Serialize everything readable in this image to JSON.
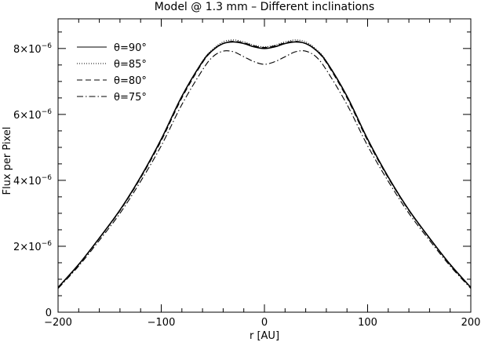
{
  "chart_data": {
    "type": "line",
    "title": "Model @ 1.3 mm – Different inclinations",
    "xlabel": "r [AU]",
    "ylabel": "Flux per Pixel",
    "xlim": [
      -200,
      200
    ],
    "ylim": [
      0,
      8.9e-06
    ],
    "xticks": [
      {
        "value": -200,
        "label": "−200"
      },
      {
        "value": -100,
        "label": "−100"
      },
      {
        "value": 0,
        "label": "0"
      },
      {
        "value": 100,
        "label": "100"
      },
      {
        "value": 200,
        "label": "200"
      }
    ],
    "yticks": [
      {
        "value": 0,
        "base": "0",
        "exp": ""
      },
      {
        "value": 2e-06,
        "base": "2×10",
        "exp": "−6"
      },
      {
        "value": 4e-06,
        "base": "4×10",
        "exp": "−6"
      },
      {
        "value": 6e-06,
        "base": "6×10",
        "exp": "−6"
      },
      {
        "value": 8e-06,
        "base": "8×10",
        "exp": "−6"
      }
    ],
    "legend_position": "top-left",
    "grid": false,
    "line_color": "#000000",
    "x": [
      -200,
      -180,
      -160,
      -140,
      -120,
      -100,
      -80,
      -60,
      -50,
      -40,
      -30,
      -20,
      -10,
      0,
      10,
      20,
      30,
      40,
      50,
      60,
      80,
      100,
      120,
      140,
      160,
      180,
      200
    ],
    "series": [
      {
        "name": "θ=90°",
        "dash": "solid",
        "values": [
          7.5e-07,
          1.45e-06,
          2.25e-06,
          3.1e-06,
          4.1e-06,
          5.25e-06,
          6.55e-06,
          7.6e-06,
          7.95e-06,
          8.15e-06,
          8.2e-06,
          8.15e-06,
          8.05e-06,
          8e-06,
          8.05e-06,
          8.15e-06,
          8.2e-06,
          8.15e-06,
          7.95e-06,
          7.6e-06,
          6.55e-06,
          5.25e-06,
          4.1e-06,
          3.1e-06,
          2.25e-06,
          1.45e-06,
          7.5e-07
        ]
      },
      {
        "name": "θ=85°",
        "dash": "dotted",
        "values": [
          7.5e-07,
          1.45e-06,
          2.25e-06,
          3.1e-06,
          4.1e-06,
          5.25e-06,
          6.55e-06,
          7.62e-06,
          7.98e-06,
          8.2e-06,
          8.26e-06,
          8.2e-06,
          8.1e-06,
          8.05e-06,
          8.1e-06,
          8.2e-06,
          8.26e-06,
          8.2e-06,
          7.98e-06,
          7.62e-06,
          6.55e-06,
          5.25e-06,
          4.1e-06,
          3.1e-06,
          2.25e-06,
          1.45e-06,
          7.5e-07
        ]
      },
      {
        "name": "θ=80°",
        "dash": "dashed",
        "values": [
          7.5e-07,
          1.44e-06,
          2.24e-06,
          3.08e-06,
          4.07e-06,
          5.2e-06,
          6.5e-06,
          7.57e-06,
          7.94e-06,
          8.15e-06,
          8.22e-06,
          8.17e-06,
          8.08e-06,
          8.03e-06,
          8.08e-06,
          8.17e-06,
          8.22e-06,
          8.15e-06,
          7.94e-06,
          7.57e-06,
          6.5e-06,
          5.2e-06,
          4.07e-06,
          3.08e-06,
          2.24e-06,
          1.44e-06,
          7.5e-07
        ]
      },
      {
        "name": "θ=75°",
        "dash": "dashdot",
        "values": [
          7.2e-07,
          1.4e-06,
          2.18e-06,
          3e-06,
          3.97e-06,
          5.05e-06,
          6.3e-06,
          7.35e-06,
          7.75e-06,
          7.92e-06,
          7.9e-06,
          7.75e-06,
          7.6e-06,
          7.52e-06,
          7.6e-06,
          7.75e-06,
          7.9e-06,
          7.92e-06,
          7.75e-06,
          7.35e-06,
          6.3e-06,
          5.05e-06,
          3.97e-06,
          3e-06,
          2.18e-06,
          1.4e-06,
          7.2e-07
        ]
      }
    ]
  }
}
